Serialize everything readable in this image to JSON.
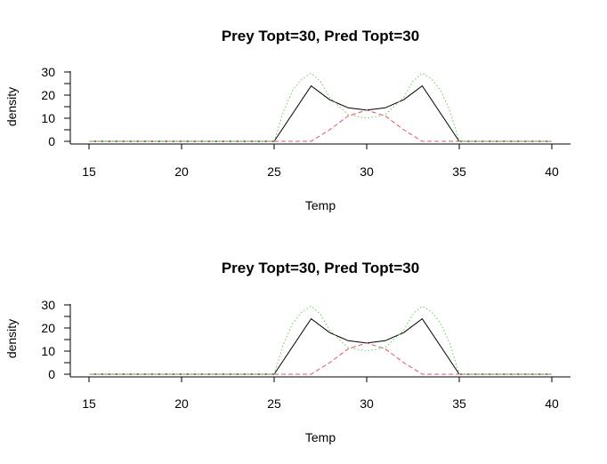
{
  "chart_data": [
    {
      "type": "line",
      "title": "Prey Topt=30, Pred Topt=30",
      "xlabel": "Temp",
      "ylabel": "density",
      "xlim": [
        15,
        40
      ],
      "ylim": [
        0,
        30
      ],
      "x_ticks": [
        15,
        20,
        25,
        30,
        35,
        40
      ],
      "y_ticks": [
        0,
        10,
        20,
        30
      ],
      "grid": false,
      "series": [
        {
          "style": "solid",
          "color": "#000000",
          "points": [
            [
              15,
              0
            ],
            [
              25,
              0
            ],
            [
              27,
              24
            ],
            [
              28,
              18
            ],
            [
              29,
              14.5
            ],
            [
              30,
              13.5
            ],
            [
              31,
              14.5
            ],
            [
              32,
              18
            ],
            [
              33,
              24
            ],
            [
              35,
              0
            ],
            [
              40,
              0
            ]
          ]
        },
        {
          "style": "dashed",
          "color": "#DF536B",
          "points": [
            [
              15,
              0
            ],
            [
              27,
              0
            ],
            [
              28,
              5
            ],
            [
              29,
              11
            ],
            [
              30,
              13.5
            ],
            [
              31,
              11
            ],
            [
              32,
              5
            ],
            [
              33,
              0
            ],
            [
              40,
              0
            ]
          ]
        },
        {
          "style": "dotted",
          "color": "#61D04F",
          "points": [
            [
              15,
              0
            ],
            [
              25,
              0
            ],
            [
              25.5,
              13
            ],
            [
              26,
              22
            ],
            [
              26.5,
              27
            ],
            [
              27,
              29.5
            ],
            [
              27.5,
              26
            ],
            [
              28,
              19
            ],
            [
              29,
              11.5
            ],
            [
              30,
              10
            ],
            [
              31,
              11.5
            ],
            [
              32,
              19
            ],
            [
              32.5,
              26
            ],
            [
              33,
              29.5
            ],
            [
              33.5,
              27
            ],
            [
              34,
              22
            ],
            [
              34.5,
              13
            ],
            [
              35,
              0
            ],
            [
              40,
              0
            ]
          ]
        }
      ]
    },
    {
      "type": "line",
      "title": "Prey Topt=30, Pred Topt=30",
      "xlabel": "Temp",
      "ylabel": "density",
      "xlim": [
        15,
        40
      ],
      "ylim": [
        0,
        30
      ],
      "x_ticks": [
        15,
        20,
        25,
        30,
        35,
        40
      ],
      "y_ticks": [
        0,
        10,
        20,
        30
      ],
      "grid": false,
      "series": [
        {
          "style": "solid",
          "color": "#000000",
          "points": [
            [
              15,
              0
            ],
            [
              25,
              0
            ],
            [
              27,
              24
            ],
            [
              28,
              18
            ],
            [
              29,
              14.5
            ],
            [
              30,
              13.5
            ],
            [
              31,
              14.5
            ],
            [
              32,
              18
            ],
            [
              33,
              24
            ],
            [
              35,
              0
            ],
            [
              40,
              0
            ]
          ]
        },
        {
          "style": "dashed",
          "color": "#DF536B",
          "points": [
            [
              15,
              0
            ],
            [
              27,
              0
            ],
            [
              28,
              5
            ],
            [
              29,
              11
            ],
            [
              30,
              13.5
            ],
            [
              31,
              11
            ],
            [
              32,
              5
            ],
            [
              33,
              0
            ],
            [
              40,
              0
            ]
          ]
        },
        {
          "style": "dotted",
          "color": "#61D04F",
          "points": [
            [
              15,
              0
            ],
            [
              25,
              0
            ],
            [
              25.5,
              13
            ],
            [
              26,
              22
            ],
            [
              26.5,
              27
            ],
            [
              27,
              29.5
            ],
            [
              27.5,
              26
            ],
            [
              28,
              19
            ],
            [
              29,
              11.5
            ],
            [
              30,
              10
            ],
            [
              31,
              11.5
            ],
            [
              32,
              19
            ],
            [
              32.5,
              26
            ],
            [
              33,
              29.5
            ],
            [
              33.5,
              27
            ],
            [
              34,
              22
            ],
            [
              34.5,
              13
            ],
            [
              35,
              0
            ],
            [
              40,
              0
            ]
          ]
        }
      ]
    }
  ]
}
